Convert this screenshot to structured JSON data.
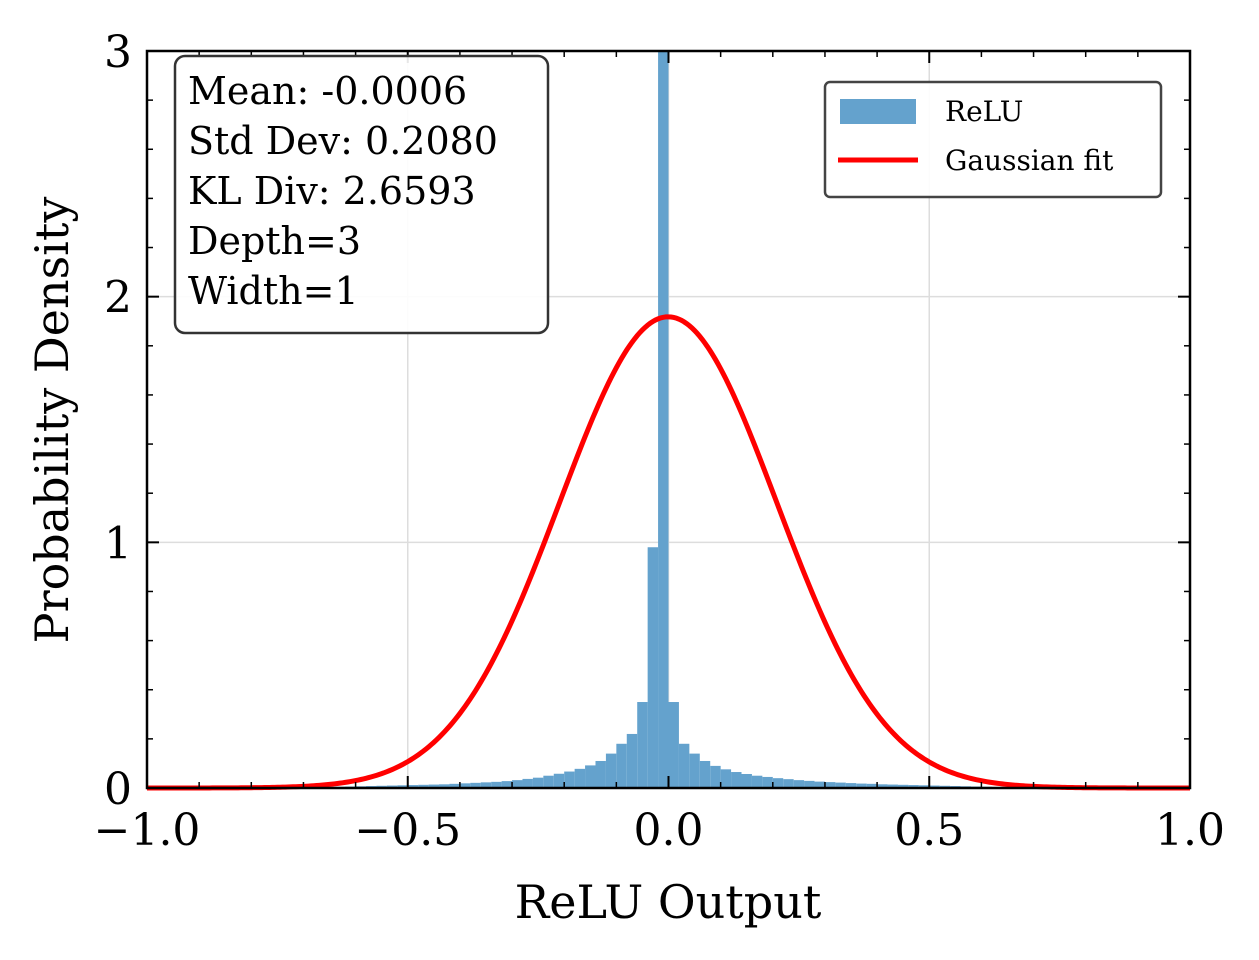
{
  "chart_data": {
    "type": "bar",
    "title": "",
    "xlabel": "ReLU Output",
    "ylabel": "Probability Density",
    "xlim": [
      -1.0,
      1.0
    ],
    "ylim": [
      0,
      3
    ],
    "x_ticks": [
      -1.0,
      -0.5,
      0.0,
      0.5,
      1.0
    ],
    "x_tick_labels": [
      "−1.0",
      "−0.5",
      "0.0",
      "0.5",
      "1.0"
    ],
    "y_ticks": [
      0,
      1,
      2,
      3
    ],
    "y_tick_labels": [
      "0",
      "1",
      "2",
      "3"
    ],
    "grid": true,
    "legend_position": "top-right",
    "series": [
      {
        "name": "ReLU",
        "kind": "histogram",
        "color": "#64a2cd",
        "bin_width": 0.02,
        "bin_starts": [
          -0.8,
          -0.78,
          -0.76,
          -0.74,
          -0.72,
          -0.7,
          -0.68,
          -0.66,
          -0.64,
          -0.62,
          -0.6,
          -0.58,
          -0.56,
          -0.54,
          -0.52,
          -0.5,
          -0.48,
          -0.46,
          -0.44,
          -0.42,
          -0.4,
          -0.38,
          -0.36,
          -0.34,
          -0.32,
          -0.3,
          -0.28,
          -0.26,
          -0.24,
          -0.22,
          -0.2,
          -0.18,
          -0.16,
          -0.14,
          -0.12,
          -0.1,
          -0.08,
          -0.06,
          -0.04,
          -0.02,
          0.0,
          0.02,
          0.04,
          0.06,
          0.08,
          0.1,
          0.12,
          0.14,
          0.16,
          0.18,
          0.2,
          0.22,
          0.24,
          0.26,
          0.28,
          0.3,
          0.32,
          0.34,
          0.36,
          0.38,
          0.4,
          0.42,
          0.44,
          0.46,
          0.48,
          0.5,
          0.52,
          0.54,
          0.56,
          0.58,
          0.6,
          0.62,
          0.64,
          0.66,
          0.68,
          0.7
        ],
        "densities": [
          0.001,
          0.001,
          0.001,
          0.002,
          0.002,
          0.003,
          0.003,
          0.004,
          0.005,
          0.006,
          0.007,
          0.008,
          0.009,
          0.01,
          0.011,
          0.012,
          0.013,
          0.014,
          0.015,
          0.017,
          0.019,
          0.021,
          0.023,
          0.025,
          0.028,
          0.032,
          0.037,
          0.042,
          0.05,
          0.058,
          0.067,
          0.078,
          0.092,
          0.11,
          0.14,
          0.18,
          0.22,
          0.35,
          0.98,
          3.0,
          0.35,
          0.18,
          0.14,
          0.11,
          0.09,
          0.076,
          0.065,
          0.057,
          0.05,
          0.045,
          0.04,
          0.036,
          0.032,
          0.029,
          0.026,
          0.024,
          0.022,
          0.02,
          0.018,
          0.017,
          0.015,
          0.014,
          0.013,
          0.012,
          0.011,
          0.01,
          0.009,
          0.008,
          0.007,
          0.006,
          0.005,
          0.004,
          0.003,
          0.002,
          0.002,
          0.001
        ]
      },
      {
        "name": "Gaussian fit",
        "kind": "line",
        "color": "#ff0000",
        "mean": -0.0006,
        "std": 0.208
      }
    ],
    "stats_box": {
      "lines": [
        "Mean: -0.0006",
        "Std Dev: 0.2080",
        "KL Div: 2.6593",
        "Depth=3",
        "Width=1"
      ],
      "position": "top-left"
    }
  }
}
